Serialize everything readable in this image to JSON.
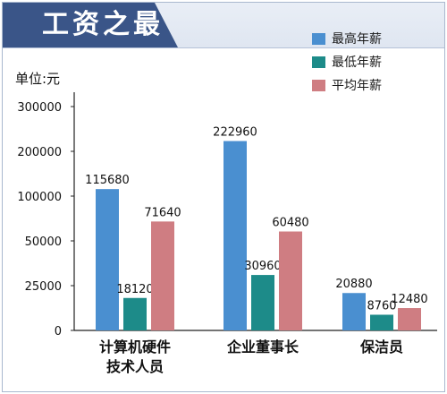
{
  "header": {
    "title": "工资之最"
  },
  "chart_data": {
    "type": "bar",
    "unit_label": "单位:元",
    "categories": [
      "计算机硬件技术人员",
      "企业董事长",
      "保洁员"
    ],
    "category_lines": [
      [
        "计算机硬件",
        "技术人员"
      ],
      [
        "企业董事长"
      ],
      [
        "保洁员"
      ]
    ],
    "series": [
      {
        "name": "最高年薪",
        "color": "#4a8fd0",
        "values": [
          115680,
          222960,
          20880
        ]
      },
      {
        "name": "最低年薪",
        "color": "#1d8b89",
        "values": [
          18120,
          30960,
          8760
        ]
      },
      {
        "name": "平均年薪",
        "color": "#cf7d82",
        "values": [
          71640,
          60480,
          12480
        ]
      }
    ],
    "y_ticks": [
      "0",
      "25000",
      "50000",
      "100000",
      "200000",
      "300000"
    ],
    "y_scale": "piecewise",
    "grid": false,
    "legend_position": "top-right"
  }
}
